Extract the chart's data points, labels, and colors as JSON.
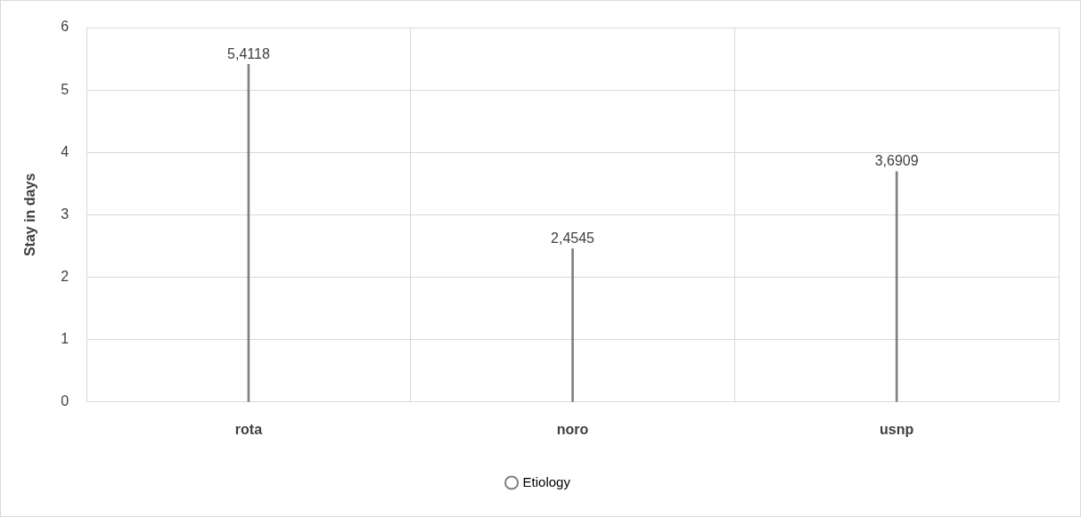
{
  "chart_data": {
    "type": "bar",
    "ylabel": "Stay in days",
    "categories": [
      "rota",
      "noro",
      "usnp"
    ],
    "series": [
      {
        "name": "Etiology",
        "color": "#808080",
        "values": [
          5.4118,
          2.4545,
          3.6909
        ],
        "value_labels": [
          "5,4118",
          "2,4545",
          "3,6909"
        ]
      }
    ],
    "ylim": [
      0,
      6
    ],
    "yticks": [
      0,
      1,
      2,
      3,
      4,
      5,
      6
    ],
    "grid": true,
    "legend": "bottom"
  }
}
